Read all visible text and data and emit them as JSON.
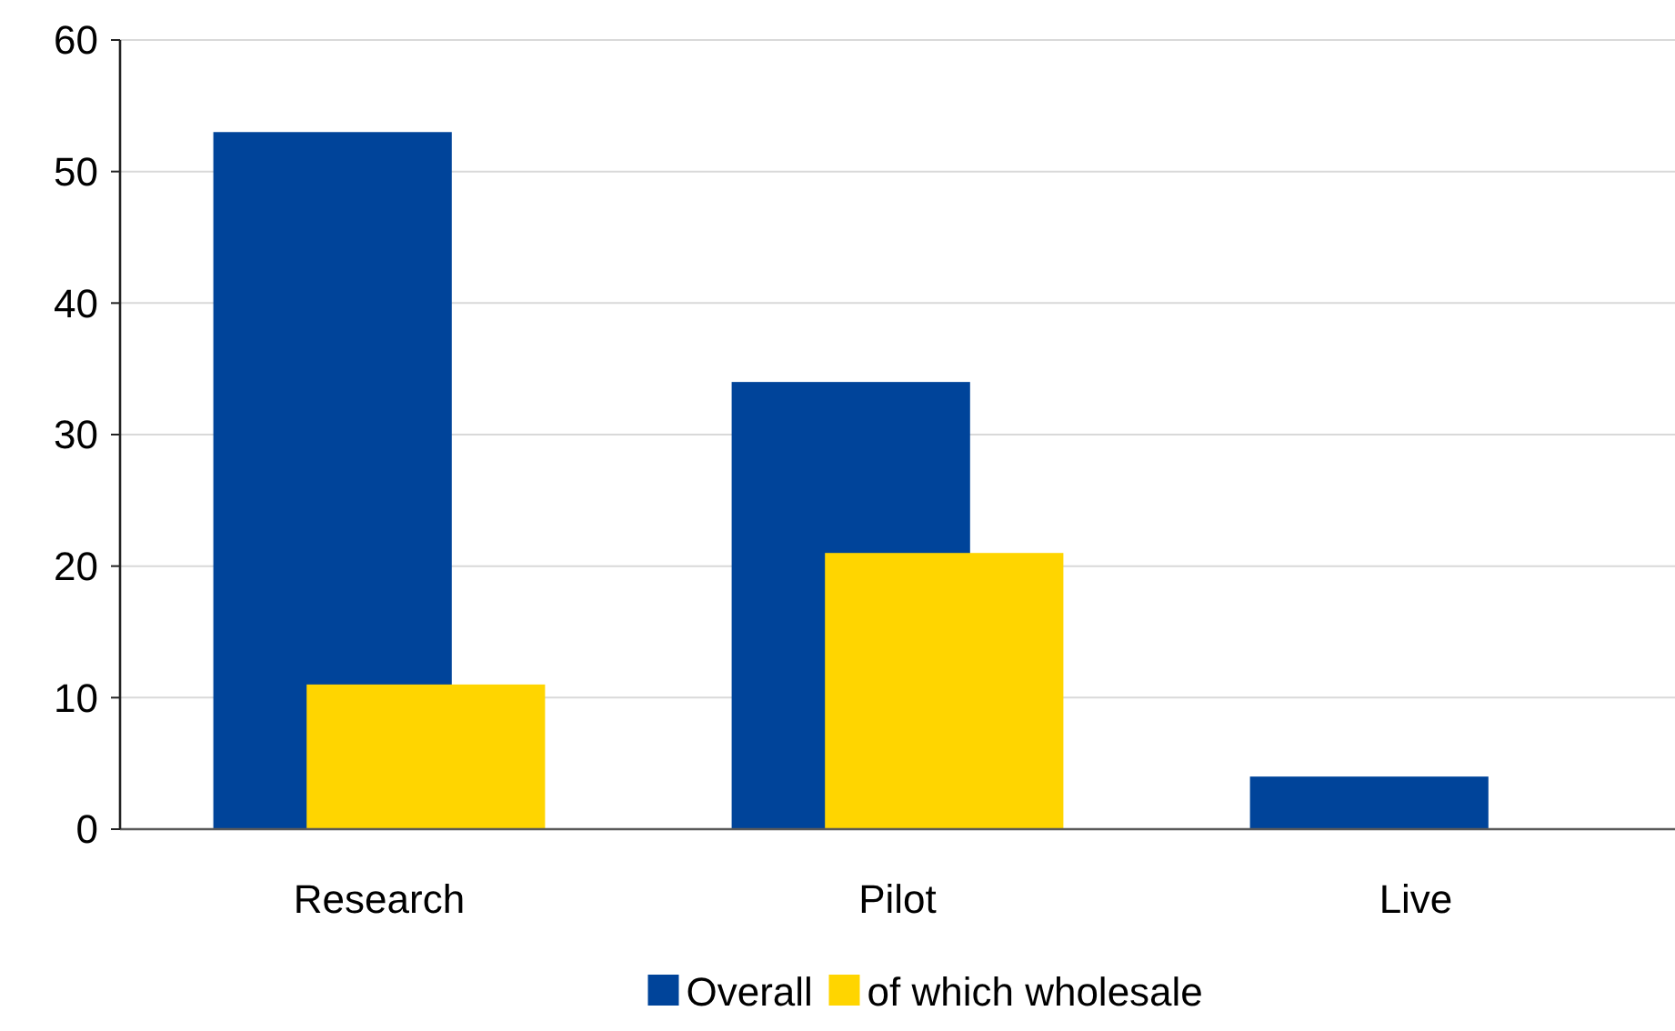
{
  "chart_data": {
    "type": "bar",
    "categories": [
      "Research",
      "Pilot",
      "Live"
    ],
    "series": [
      {
        "name": "Overall",
        "color": "#00449a",
        "values": [
          53,
          34,
          4
        ]
      },
      {
        "name": "of which wholesale",
        "color": "#ffd500",
        "values": [
          11,
          21,
          0
        ]
      }
    ],
    "ylim": [
      0,
      60
    ],
    "yticks": [
      0,
      10,
      20,
      30,
      40,
      50,
      60
    ],
    "grid": "y",
    "legend": "bottom"
  }
}
